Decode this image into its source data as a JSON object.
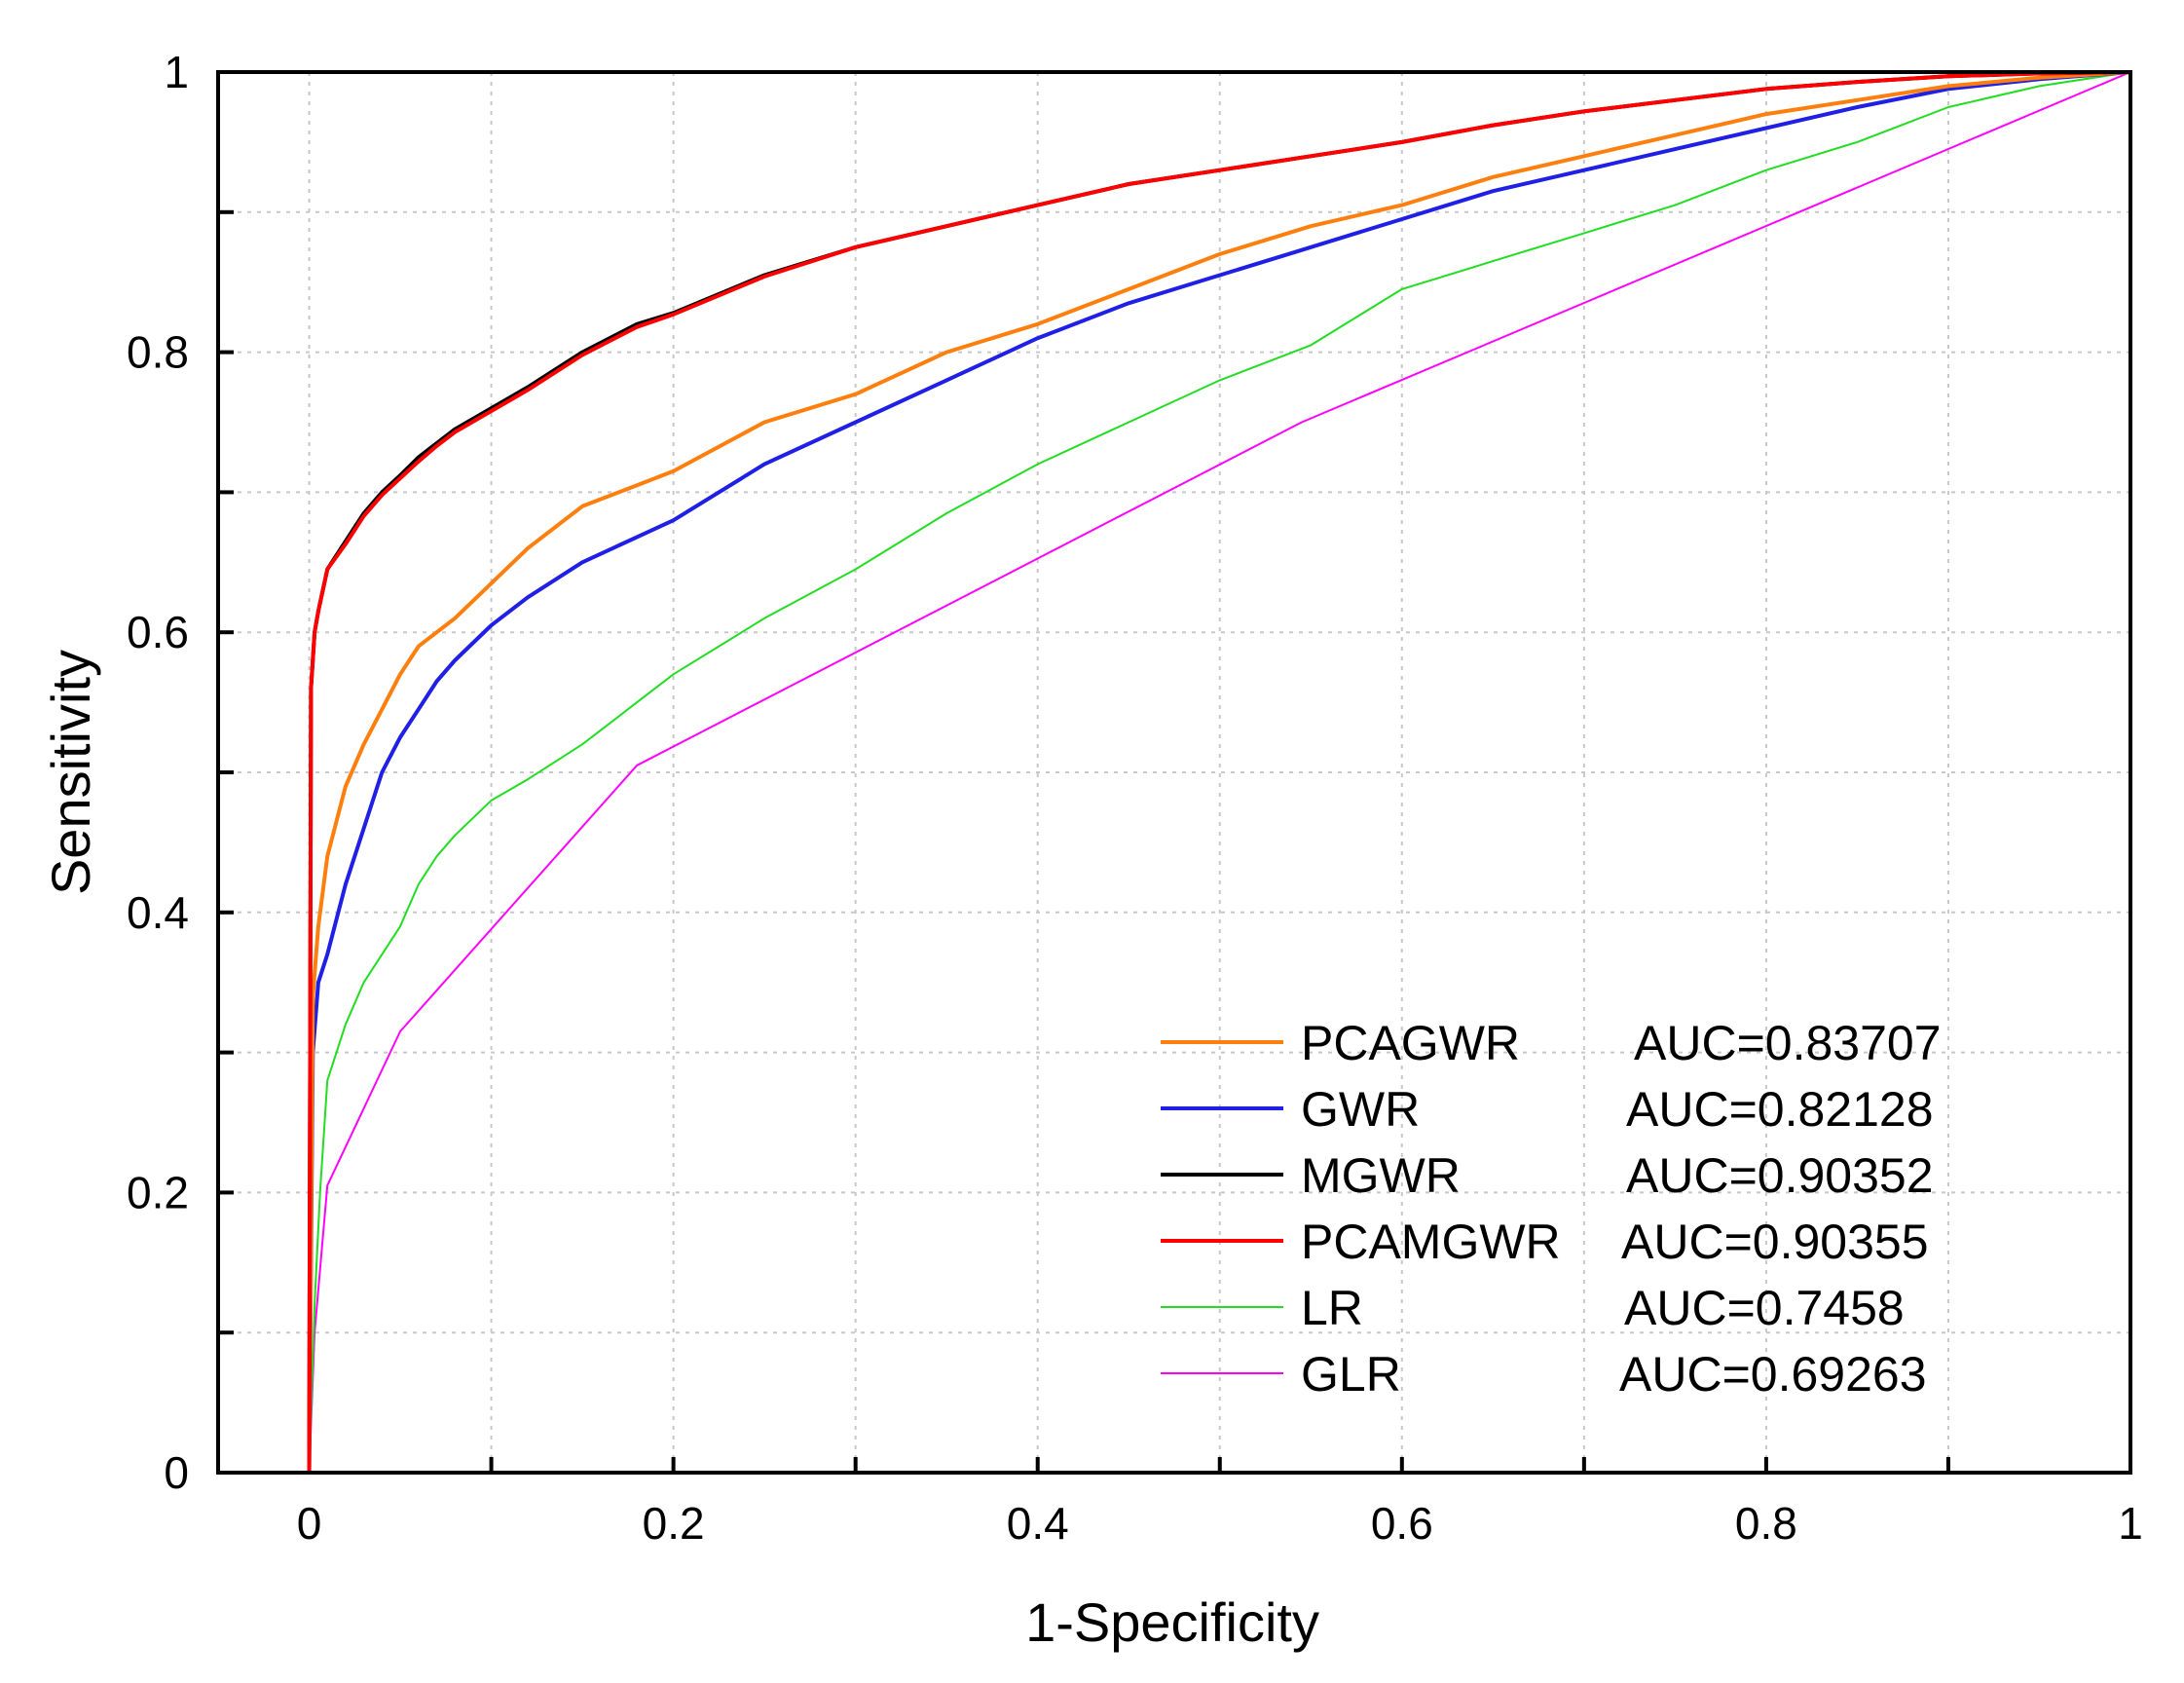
{
  "chart_data": {
    "type": "line",
    "title": "",
    "xlabel": "1-Specificity",
    "ylabel": "Sensitivity",
    "xlim": [
      -0.05,
      1
    ],
    "ylim": [
      0,
      1
    ],
    "grid": true,
    "legend_position": "bottom-right",
    "x_ticks": [
      "0",
      "0.2",
      "0.4",
      "0.6",
      "0.8",
      "1"
    ],
    "y_ticks": [
      "0",
      "0.2",
      "0.4",
      "0.6",
      "0.8",
      "1"
    ],
    "series": [
      {
        "name": "PCAGWR",
        "auc_label": "AUC=0.83707",
        "color": "#ff7f0e",
        "width": "thick",
        "x": [
          0,
          0.002,
          0.005,
          0.01,
          0.02,
          0.03,
          0.04,
          0.05,
          0.06,
          0.07,
          0.08,
          0.1,
          0.12,
          0.15,
          0.18,
          0.2,
          0.25,
          0.3,
          0.35,
          0.4,
          0.45,
          0.5,
          0.55,
          0.6,
          0.65,
          0.7,
          0.75,
          0.8,
          0.85,
          0.9,
          0.95,
          1.0
        ],
        "y": [
          0,
          0.34,
          0.39,
          0.44,
          0.49,
          0.52,
          0.545,
          0.57,
          0.59,
          0.6,
          0.61,
          0.635,
          0.66,
          0.69,
          0.705,
          0.715,
          0.75,
          0.77,
          0.8,
          0.82,
          0.845,
          0.87,
          0.89,
          0.905,
          0.925,
          0.94,
          0.955,
          0.97,
          0.98,
          0.99,
          0.996,
          1.0
        ]
      },
      {
        "name": "GWR",
        "auc_label": "AUC=0.82128",
        "color": "#1f1fe6",
        "width": "thick",
        "x": [
          0,
          0.002,
          0.005,
          0.01,
          0.02,
          0.03,
          0.04,
          0.05,
          0.06,
          0.07,
          0.08,
          0.1,
          0.12,
          0.15,
          0.18,
          0.2,
          0.25,
          0.3,
          0.35,
          0.4,
          0.45,
          0.5,
          0.55,
          0.6,
          0.65,
          0.7,
          0.75,
          0.8,
          0.85,
          0.9,
          0.95,
          1.0
        ],
        "y": [
          0,
          0.3,
          0.35,
          0.37,
          0.42,
          0.46,
          0.5,
          0.525,
          0.545,
          0.565,
          0.58,
          0.605,
          0.625,
          0.65,
          0.668,
          0.68,
          0.72,
          0.75,
          0.78,
          0.81,
          0.835,
          0.855,
          0.875,
          0.895,
          0.915,
          0.93,
          0.945,
          0.96,
          0.975,
          0.988,
          0.995,
          1.0
        ]
      },
      {
        "name": "MGWR",
        "auc_label": "AUC=0.90352",
        "color": "#000000",
        "width": "thick",
        "x": [
          0,
          0.001,
          0.003,
          0.005,
          0.01,
          0.02,
          0.03,
          0.04,
          0.05,
          0.06,
          0.07,
          0.08,
          0.1,
          0.12,
          0.15,
          0.18,
          0.2,
          0.25,
          0.3,
          0.35,
          0.4,
          0.45,
          0.5,
          0.55,
          0.6,
          0.65,
          0.7,
          0.75,
          0.8,
          0.85,
          0.9,
          0.95,
          1.0
        ],
        "y": [
          0,
          0.56,
          0.6,
          0.615,
          0.645,
          0.665,
          0.685,
          0.7,
          0.712,
          0.725,
          0.735,
          0.745,
          0.76,
          0.775,
          0.8,
          0.82,
          0.828,
          0.855,
          0.875,
          0.89,
          0.905,
          0.92,
          0.93,
          0.94,
          0.95,
          0.962,
          0.972,
          0.98,
          0.988,
          0.993,
          0.997,
          0.999,
          1.0
        ]
      },
      {
        "name": "PCAMGWR",
        "auc_label": "AUC=0.90355",
        "color": "#ff0000",
        "width": "thick",
        "x": [
          0,
          0.001,
          0.003,
          0.005,
          0.01,
          0.02,
          0.03,
          0.04,
          0.05,
          0.06,
          0.07,
          0.08,
          0.1,
          0.12,
          0.15,
          0.18,
          0.2,
          0.25,
          0.3,
          0.35,
          0.4,
          0.45,
          0.5,
          0.55,
          0.6,
          0.65,
          0.7,
          0.75,
          0.8,
          0.85,
          0.9,
          0.95,
          1.0
        ],
        "y": [
          0,
          0.56,
          0.6,
          0.615,
          0.645,
          0.663,
          0.683,
          0.698,
          0.71,
          0.722,
          0.733,
          0.743,
          0.758,
          0.773,
          0.798,
          0.818,
          0.827,
          0.854,
          0.875,
          0.89,
          0.905,
          0.92,
          0.93,
          0.94,
          0.95,
          0.962,
          0.972,
          0.98,
          0.988,
          0.993,
          0.997,
          0.999,
          1.0
        ]
      },
      {
        "name": "LR",
        "auc_label": "AUC=0.7458",
        "color": "#22dd22",
        "width": "thin",
        "x": [
          0,
          0.003,
          0.006,
          0.01,
          0.02,
          0.03,
          0.04,
          0.05,
          0.06,
          0.07,
          0.08,
          0.1,
          0.12,
          0.15,
          0.18,
          0.2,
          0.25,
          0.3,
          0.35,
          0.4,
          0.45,
          0.5,
          0.55,
          0.6,
          0.65,
          0.7,
          0.75,
          0.8,
          0.85,
          0.9,
          0.95,
          1.0
        ],
        "y": [
          0,
          0.12,
          0.2,
          0.28,
          0.32,
          0.35,
          0.37,
          0.39,
          0.42,
          0.44,
          0.455,
          0.48,
          0.495,
          0.52,
          0.55,
          0.57,
          0.61,
          0.645,
          0.685,
          0.72,
          0.75,
          0.78,
          0.805,
          0.845,
          0.865,
          0.885,
          0.905,
          0.93,
          0.95,
          0.975,
          0.99,
          1.0
        ]
      },
      {
        "name": "GLR",
        "auc_label": "AUC=0.69263",
        "color": "#ff00ff",
        "width": "thin",
        "x": [
          0,
          0.003,
          0.01,
          0.05,
          0.18,
          0.545,
          1.0
        ],
        "y": [
          0,
          0.1,
          0.205,
          0.315,
          0.505,
          0.75,
          1.0
        ]
      }
    ]
  }
}
